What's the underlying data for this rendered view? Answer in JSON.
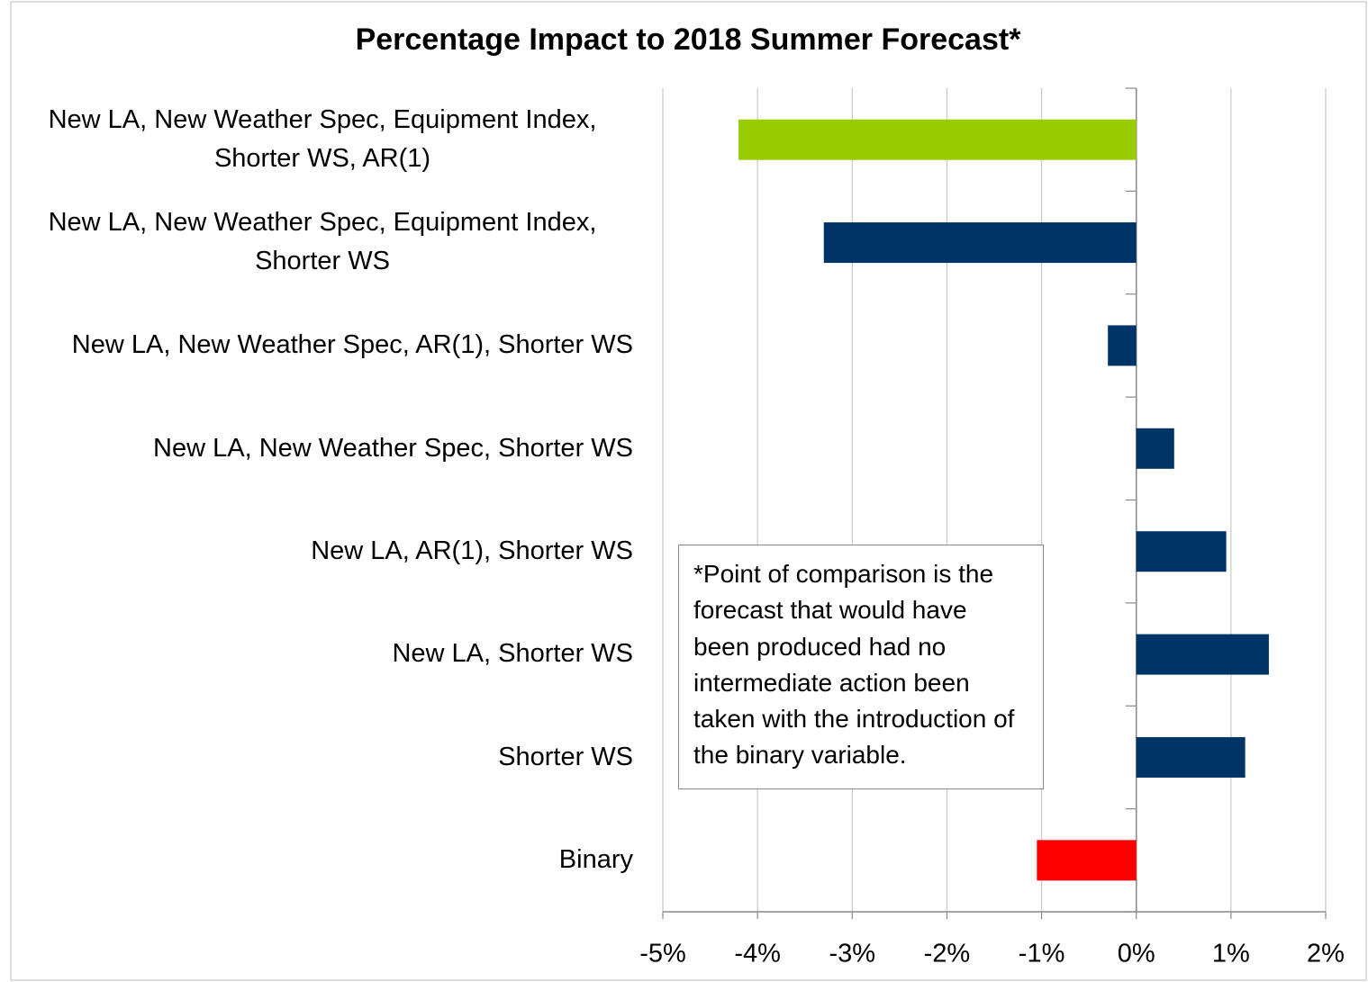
{
  "chart_data": {
    "type": "bar",
    "orientation": "horizontal",
    "title": "Percentage Impact to 2018 Summer Forecast*",
    "categories": [
      "New LA, New Weather Spec, Equipment Index, Shorter WS, AR(1)",
      "New LA, New Weather Spec, Equipment Index, Shorter WS",
      "New LA, New Weather Spec, AR(1), Shorter WS",
      "New LA, New Weather Spec, Shorter WS",
      "New LA, AR(1), Shorter WS",
      "New LA, Shorter WS",
      "Shorter WS",
      "Binary"
    ],
    "values": [
      -4.2,
      -3.3,
      -0.3,
      0.4,
      0.95,
      1.4,
      1.15,
      -1.05
    ],
    "colors": [
      "#99cc00",
      "#003366",
      "#003366",
      "#003366",
      "#003366",
      "#003366",
      "#003366",
      "#ff0000"
    ],
    "xlim": [
      -5,
      2
    ],
    "xticks": [
      {
        "value": -5,
        "label": "-5%"
      },
      {
        "value": -4,
        "label": "-4%"
      },
      {
        "value": -3,
        "label": "-3%"
      },
      {
        "value": -2,
        "label": "-2%"
      },
      {
        "value": -1,
        "label": "-1%"
      },
      {
        "value": 0,
        "label": "0%"
      },
      {
        "value": 1,
        "label": "1%"
      },
      {
        "value": 2,
        "label": "2%"
      }
    ],
    "grid": true,
    "annotation": "*Point of comparison is the forecast that would have been produced had no intermediate action been taken with the introduction of the binary variable."
  }
}
